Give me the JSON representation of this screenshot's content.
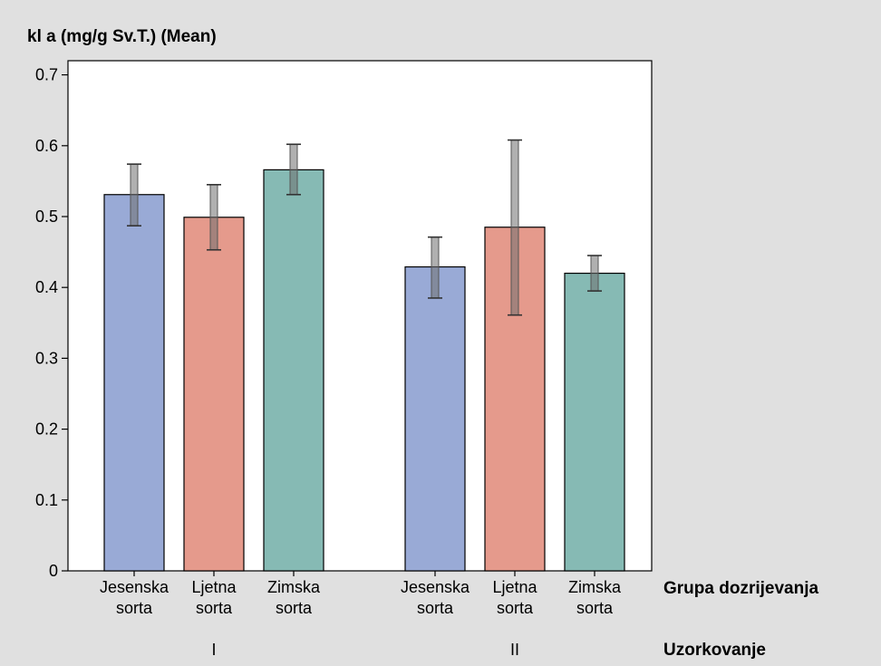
{
  "chart_data": {
    "type": "bar",
    "title": "kl a (mg/g Sv.T.) (Mean)",
    "x_inner_label": "Grupa dozrijevanja",
    "x_outer_label": "Uzorkovanje",
    "ylim": [
      0,
      0.7
    ],
    "y_ticks": [
      "0",
      "0.1",
      "0.2",
      "0.3",
      "0.4",
      "0.5",
      "0.6",
      "0.7"
    ],
    "y_tick_values": [
      0,
      0.1,
      0.2,
      0.3,
      0.4,
      0.5,
      0.6,
      0.7
    ],
    "grid": false,
    "error_bars": true,
    "groups": [
      {
        "label": "I",
        "bars": [
          {
            "category_lines": [
              "Jesenska",
              "sorta"
            ],
            "value": 0.531,
            "err_low": 0.487,
            "err_high": 0.574,
            "color": "#99aad6"
          },
          {
            "category_lines": [
              "Ljetna",
              "sorta"
            ],
            "value": 0.499,
            "err_low": 0.453,
            "err_high": 0.545,
            "color": "#e59a8c"
          },
          {
            "category_lines": [
              "Zimska",
              "sorta"
            ],
            "value": 0.566,
            "err_low": 0.531,
            "err_high": 0.602,
            "color": "#86bab4"
          }
        ]
      },
      {
        "label": "II",
        "bars": [
          {
            "category_lines": [
              "Jesenska",
              "sorta"
            ],
            "value": 0.429,
            "err_low": 0.385,
            "err_high": 0.471,
            "color": "#99aad6"
          },
          {
            "category_lines": [
              "Ljetna",
              "sorta"
            ],
            "value": 0.485,
            "err_low": 0.361,
            "err_high": 0.608,
            "color": "#e59a8c"
          },
          {
            "category_lines": [
              "Zimska",
              "sorta"
            ],
            "value": 0.42,
            "err_low": 0.395,
            "err_high": 0.445,
            "color": "#86bab4"
          }
        ]
      }
    ],
    "colors": {
      "background": "#e0e0e0",
      "plot_area": "#ffffff",
      "error_bar": "#808080"
    }
  }
}
